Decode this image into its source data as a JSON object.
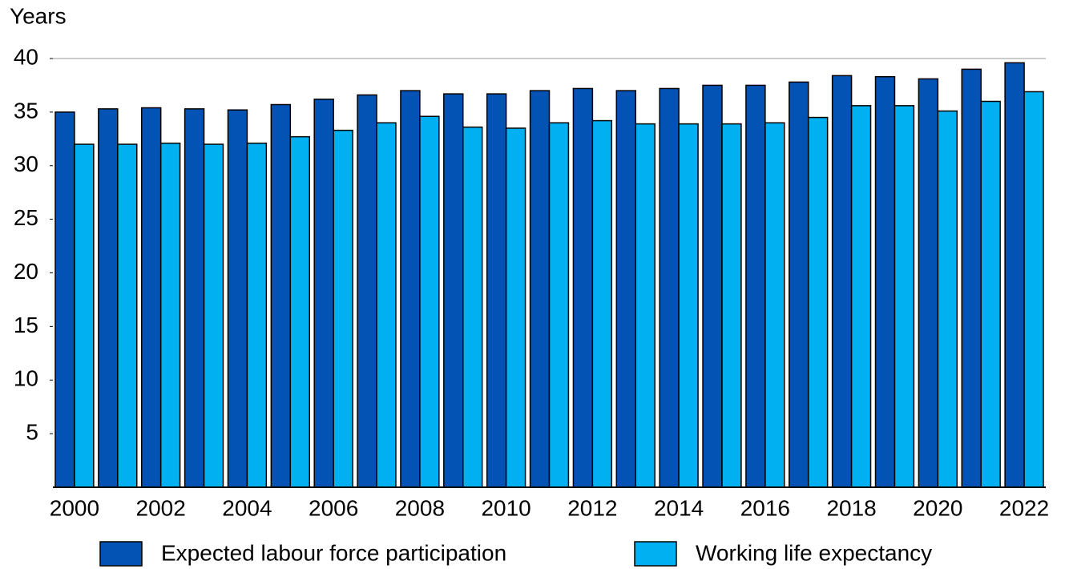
{
  "chart_data": {
    "type": "bar",
    "y_axis_label": "Years",
    "categories": [
      "2000",
      null,
      "2002",
      null,
      "2004",
      null,
      "2006",
      null,
      "2008",
      null,
      "2010",
      null,
      "2012",
      null,
      "2014",
      null,
      "2016",
      null,
      "2018",
      null,
      "2020",
      null,
      "2022"
    ],
    "series": [
      {
        "name": "Expected labour force participation",
        "color": "#0353b5",
        "values": [
          35.0,
          35.3,
          35.4,
          35.3,
          35.2,
          35.7,
          36.2,
          36.6,
          37.0,
          36.7,
          36.7,
          37.0,
          37.2,
          37.0,
          37.2,
          37.5,
          37.5,
          37.8,
          38.4,
          38.3,
          38.1,
          39.0,
          39.6
        ]
      },
      {
        "name": "Working life expectancy",
        "color": "#00b0f0",
        "values": [
          32.0,
          32.0,
          32.1,
          32.0,
          32.1,
          32.7,
          33.3,
          34.0,
          34.6,
          33.6,
          33.5,
          34.0,
          34.2,
          33.9,
          33.9,
          33.9,
          34.0,
          34.5,
          35.6,
          35.6,
          35.1,
          36.0,
          36.9
        ]
      }
    ],
    "ylim": [
      0,
      40
    ],
    "yticks": [
      5,
      10,
      15,
      20,
      25,
      30,
      35,
      40
    ]
  }
}
